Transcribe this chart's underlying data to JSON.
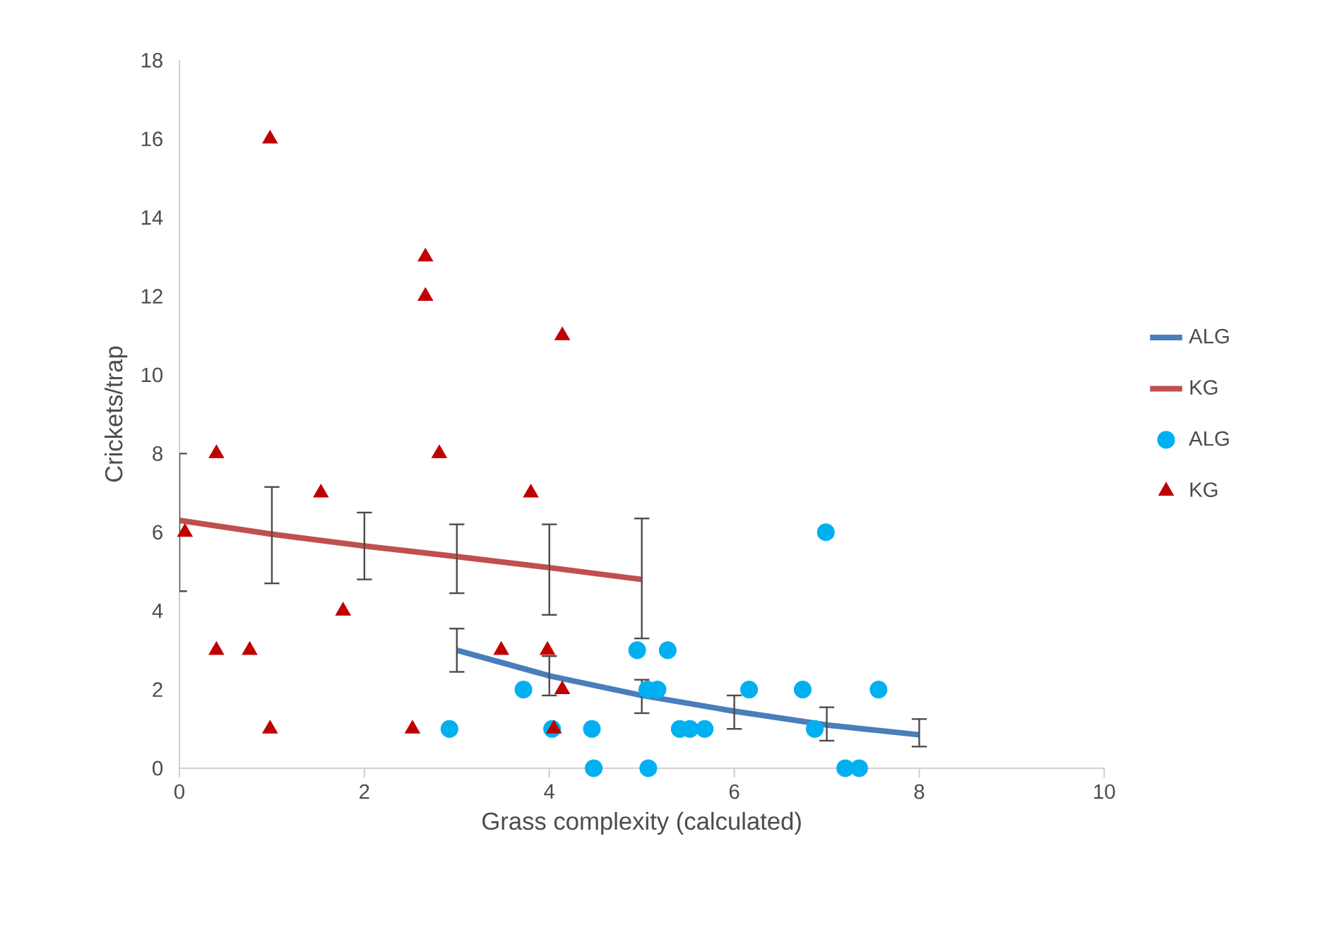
{
  "chart_data": {
    "type": "scatter",
    "xlabel": "Grass complexity (calculated)",
    "ylabel": "Crickets/trap",
    "xlim": [
      0,
      10
    ],
    "xticks": [
      0,
      2,
      4,
      6,
      8,
      10
    ],
    "ylim": [
      0,
      18
    ],
    "yticks": [
      0,
      2,
      4,
      6,
      8,
      10,
      12,
      14,
      16,
      18
    ],
    "grid": false,
    "legend": "right",
    "series": [
      {
        "name": "ALG",
        "type": "line",
        "color": "#4a7ebb",
        "marker": "none",
        "line_style": "solid",
        "x": [
          3,
          4,
          5,
          6,
          7,
          8
        ],
        "values": [
          3.0,
          2.35,
          1.85,
          1.45,
          1.1,
          0.85
        ],
        "errors": [
          [
            2.45,
            3.55
          ],
          [
            1.85,
            2.85
          ],
          [
            1.4,
            2.25
          ],
          [
            1.0,
            1.85
          ],
          [
            0.7,
            1.55
          ],
          [
            0.55,
            1.25
          ]
        ]
      },
      {
        "name": "KG",
        "type": "line",
        "color": "#c0504d",
        "marker": "none",
        "line_style": "solid",
        "x": [
          0,
          1,
          2,
          3,
          4,
          5
        ],
        "values": [
          6.3,
          5.95,
          5.65,
          5.38,
          5.1,
          4.8
        ],
        "errors": [
          [
            4.5,
            8.0
          ],
          [
            4.7,
            7.15
          ],
          [
            4.8,
            6.5
          ],
          [
            4.45,
            6.2
          ],
          [
            3.9,
            6.2
          ],
          [
            3.3,
            6.35
          ]
        ]
      },
      {
        "name": "ALG",
        "color": "#00b0f0",
        "marker": "circle",
        "x": [
          2.92,
          3.72,
          4.03,
          4.46,
          4.48,
          4.95,
          5.07,
          5.06,
          5.17,
          5.28,
          5.41,
          5.52,
          5.68,
          6.16,
          6.74,
          6.87,
          6.99,
          7.2,
          7.35,
          7.56
        ],
        "values": [
          1,
          2,
          1,
          1,
          0,
          3,
          0,
          2,
          2,
          3,
          1,
          1,
          1,
          2,
          2,
          1,
          6,
          0,
          0,
          2
        ]
      },
      {
        "name": "KG",
        "color": "#c00000",
        "marker": "triangle",
        "x": [
          0.06,
          0.4,
          0.4,
          0.76,
          0.98,
          0.98,
          1.53,
          1.77,
          2.52,
          2.66,
          2.66,
          2.81,
          3.48,
          3.8,
          3.98,
          4.05,
          4.14,
          4.14
        ],
        "values": [
          6,
          8,
          3,
          3,
          16,
          1,
          7,
          4,
          1,
          13,
          12,
          8,
          3,
          7,
          3,
          1,
          2,
          11
        ]
      }
    ]
  }
}
